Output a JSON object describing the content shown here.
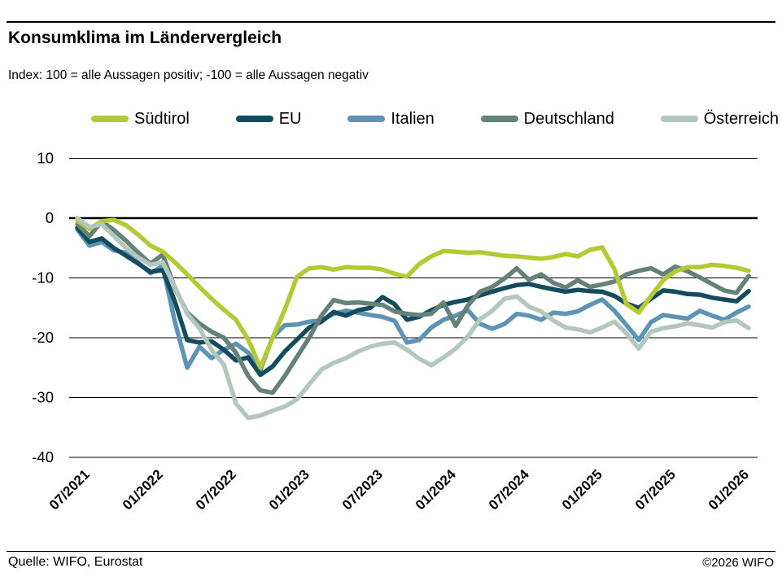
{
  "header": {
    "title": "Konsumklima im Ländervergleich",
    "subtitle": "Index: 100 = alle Aussagen positiv; -100 =  alle Aussagen negativ"
  },
  "chart_data": {
    "type": "line",
    "title": "Konsumklima im Ländervergleich",
    "n_points": 56,
    "x_start": "07/2021",
    "x_end": "02/2026",
    "x_tick_every": 6,
    "x_tick_labels": [
      "07/2021",
      "01/2022",
      "07/2022",
      "01/2023",
      "07/2023",
      "01/2024",
      "07/2024",
      "01/2025",
      "07/2025",
      "01/2026"
    ],
    "y_ticks": [
      10,
      0,
      -10,
      -20,
      -30,
      -40
    ],
    "ylim": [
      -40,
      10
    ],
    "grid": true,
    "legend_position": "top",
    "series": [
      {
        "name": "Südtirol",
        "color": "#b5c934",
        "values": [
          -0.5,
          -1.8,
          -0.5,
          -0.3,
          -1.2,
          -2.8,
          -4.6,
          -5.6,
          -7.4,
          -9.4,
          -11.5,
          -13.5,
          -15.3,
          -17,
          -20.3,
          -25,
          -20,
          -15.3,
          -9.8,
          -8.4,
          -8.2,
          -8.6,
          -8.2,
          -8.3,
          -8.3,
          -8.6,
          -9.3,
          -9.8,
          -7.7,
          -6.4,
          -5.5,
          -5.6,
          -5.8,
          -5.7,
          -6,
          -6.3,
          -6.4,
          -6.6,
          -6.8,
          -6.5,
          -6,
          -6.4,
          -5.3,
          -4.9,
          -8.5,
          -14.4,
          -15.8,
          -13,
          -10.4,
          -8.9,
          -8.2,
          -8.2,
          -7.8,
          -8,
          -8.3,
          -8.8
        ]
      },
      {
        "name": "EU",
        "color": "#154b5f",
        "values": [
          -1.6,
          -4,
          -3.4,
          -5,
          -6.3,
          -7.6,
          -9,
          -8.7,
          -14,
          -20.4,
          -20.8,
          -20.6,
          -22,
          -23.8,
          -23.3,
          -26.2,
          -24.8,
          -22.3,
          -20.3,
          -18.3,
          -17.3,
          -15.7,
          -16.3,
          -15.4,
          -15,
          -13.2,
          -14.4,
          -17,
          -16.5,
          -15.4,
          -14.5,
          -14,
          -13.6,
          -12.9,
          -12.3,
          -11.7,
          -11.2,
          -11,
          -11.5,
          -11.9,
          -12.3,
          -12,
          -12.2,
          -12.3,
          -13,
          -14.3,
          -15,
          -13.5,
          -12.1,
          -12.3,
          -12.7,
          -12.8,
          -13.3,
          -13.6,
          -13.9,
          -12.2
        ]
      },
      {
        "name": "Italien",
        "color": "#5d93b4",
        "values": [
          -1.9,
          -4.6,
          -4,
          -5.4,
          -5.8,
          -7.5,
          -9.2,
          -8,
          -17.4,
          -25,
          -21.5,
          -23.4,
          -22,
          -21,
          -22.5,
          -25.4,
          -19.9,
          -17.9,
          -17.8,
          -17.3,
          -17.1,
          -16,
          -15.5,
          -15.8,
          -16.2,
          -16.5,
          -17.2,
          -20.8,
          -20.4,
          -18.3,
          -17,
          -16.3,
          -15.4,
          -17.7,
          -18.5,
          -17.7,
          -16,
          -16.3,
          -17,
          -15.8,
          -16,
          -15.6,
          -14.5,
          -13.6,
          -15.5,
          -17.9,
          -20.4,
          -17.4,
          -16.2,
          -16.5,
          -16.8,
          -15.5,
          -16.3,
          -17,
          -15.8,
          -14.8
        ]
      },
      {
        "name": "Deutschland",
        "color": "#66807a",
        "values": [
          -1,
          -3,
          -0.6,
          -2,
          -3.8,
          -5.8,
          -7.6,
          -6.1,
          -11.7,
          -15.8,
          -17.6,
          -19,
          -20,
          -22.5,
          -26.4,
          -28.8,
          -29.2,
          -26.4,
          -23.2,
          -20,
          -16.3,
          -13.7,
          -14.2,
          -14.1,
          -14.3,
          -14.5,
          -15.6,
          -16,
          -16.2,
          -16,
          -14.1,
          -18,
          -14.6,
          -12.3,
          -11.5,
          -10.1,
          -8.4,
          -10.3,
          -9.4,
          -10.8,
          -11.6,
          -10.4,
          -11.5,
          -11.1,
          -10.6,
          -9.4,
          -8.8,
          -8.4,
          -9.4,
          -8.1,
          -8.9,
          -9.9,
          -11,
          -12.1,
          -12.5,
          -9.7
        ]
      },
      {
        "name": "Österreich",
        "color": "#b4c7bc",
        "values": [
          0,
          -1.5,
          -1,
          -3,
          -5,
          -6.6,
          -7.8,
          -7.4,
          -11.5,
          -16,
          -18.4,
          -22,
          -24.5,
          -31,
          -33.4,
          -33,
          -32.2,
          -31.5,
          -30.3,
          -27.8,
          -25.3,
          -24.2,
          -23.4,
          -22.3,
          -21.5,
          -21,
          -20.8,
          -22,
          -23.5,
          -24.6,
          -23.3,
          -21.8,
          -19.8,
          -16.9,
          -15.5,
          -13.5,
          -13.1,
          -14.8,
          -15.6,
          -17.1,
          -18.3,
          -18.6,
          -19.1,
          -18.3,
          -17.3,
          -19.3,
          -21.8,
          -19,
          -18.4,
          -18.1,
          -17.6,
          -17.9,
          -18.3,
          -17.4,
          -17.1,
          -18.4
        ]
      }
    ]
  },
  "footer": {
    "source": "Quelle: WIFO, Eurostat",
    "copyright": "©2026 WIFO"
  }
}
